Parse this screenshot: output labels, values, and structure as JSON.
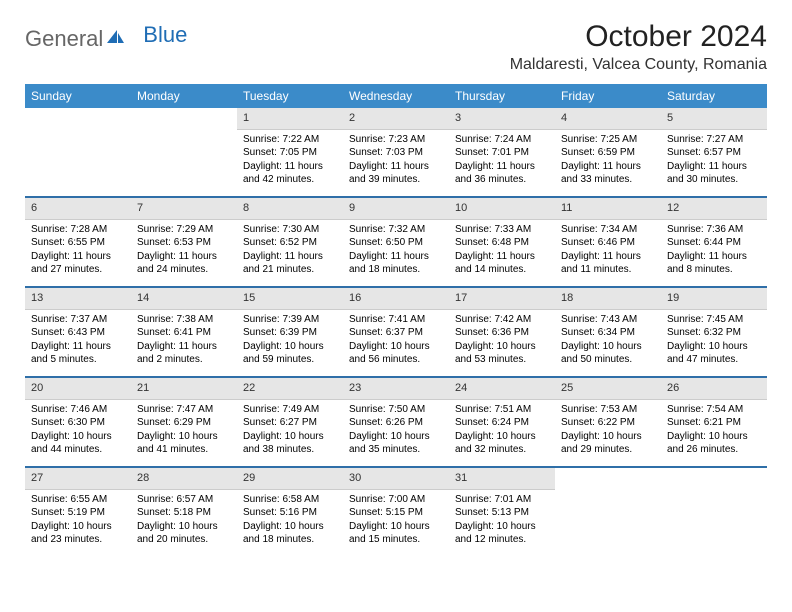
{
  "logo": {
    "general": "General",
    "blue": "Blue"
  },
  "title": "October 2024",
  "location": "Maldaresti, Valcea County, Romania",
  "colors": {
    "header_bg": "#3b8bc9",
    "header_text": "#ffffff",
    "daynum_bg": "#e6e6e6",
    "row_separator": "#2f6fa8",
    "logo_blue": "#1f6db5"
  },
  "weekdays": [
    "Sunday",
    "Monday",
    "Tuesday",
    "Wednesday",
    "Thursday",
    "Friday",
    "Saturday"
  ],
  "calendar": {
    "first_weekday_index": 2,
    "days": [
      {
        "n": 1,
        "sunrise": "7:22 AM",
        "sunset": "7:05 PM",
        "daylight": "11 hours and 42 minutes."
      },
      {
        "n": 2,
        "sunrise": "7:23 AM",
        "sunset": "7:03 PM",
        "daylight": "11 hours and 39 minutes."
      },
      {
        "n": 3,
        "sunrise": "7:24 AM",
        "sunset": "7:01 PM",
        "daylight": "11 hours and 36 minutes."
      },
      {
        "n": 4,
        "sunrise": "7:25 AM",
        "sunset": "6:59 PM",
        "daylight": "11 hours and 33 minutes."
      },
      {
        "n": 5,
        "sunrise": "7:27 AM",
        "sunset": "6:57 PM",
        "daylight": "11 hours and 30 minutes."
      },
      {
        "n": 6,
        "sunrise": "7:28 AM",
        "sunset": "6:55 PM",
        "daylight": "11 hours and 27 minutes."
      },
      {
        "n": 7,
        "sunrise": "7:29 AM",
        "sunset": "6:53 PM",
        "daylight": "11 hours and 24 minutes."
      },
      {
        "n": 8,
        "sunrise": "7:30 AM",
        "sunset": "6:52 PM",
        "daylight": "11 hours and 21 minutes."
      },
      {
        "n": 9,
        "sunrise": "7:32 AM",
        "sunset": "6:50 PM",
        "daylight": "11 hours and 18 minutes."
      },
      {
        "n": 10,
        "sunrise": "7:33 AM",
        "sunset": "6:48 PM",
        "daylight": "11 hours and 14 minutes."
      },
      {
        "n": 11,
        "sunrise": "7:34 AM",
        "sunset": "6:46 PM",
        "daylight": "11 hours and 11 minutes."
      },
      {
        "n": 12,
        "sunrise": "7:36 AM",
        "sunset": "6:44 PM",
        "daylight": "11 hours and 8 minutes."
      },
      {
        "n": 13,
        "sunrise": "7:37 AM",
        "sunset": "6:43 PM",
        "daylight": "11 hours and 5 minutes."
      },
      {
        "n": 14,
        "sunrise": "7:38 AM",
        "sunset": "6:41 PM",
        "daylight": "11 hours and 2 minutes."
      },
      {
        "n": 15,
        "sunrise": "7:39 AM",
        "sunset": "6:39 PM",
        "daylight": "10 hours and 59 minutes."
      },
      {
        "n": 16,
        "sunrise": "7:41 AM",
        "sunset": "6:37 PM",
        "daylight": "10 hours and 56 minutes."
      },
      {
        "n": 17,
        "sunrise": "7:42 AM",
        "sunset": "6:36 PM",
        "daylight": "10 hours and 53 minutes."
      },
      {
        "n": 18,
        "sunrise": "7:43 AM",
        "sunset": "6:34 PM",
        "daylight": "10 hours and 50 minutes."
      },
      {
        "n": 19,
        "sunrise": "7:45 AM",
        "sunset": "6:32 PM",
        "daylight": "10 hours and 47 minutes."
      },
      {
        "n": 20,
        "sunrise": "7:46 AM",
        "sunset": "6:30 PM",
        "daylight": "10 hours and 44 minutes."
      },
      {
        "n": 21,
        "sunrise": "7:47 AM",
        "sunset": "6:29 PM",
        "daylight": "10 hours and 41 minutes."
      },
      {
        "n": 22,
        "sunrise": "7:49 AM",
        "sunset": "6:27 PM",
        "daylight": "10 hours and 38 minutes."
      },
      {
        "n": 23,
        "sunrise": "7:50 AM",
        "sunset": "6:26 PM",
        "daylight": "10 hours and 35 minutes."
      },
      {
        "n": 24,
        "sunrise": "7:51 AM",
        "sunset": "6:24 PM",
        "daylight": "10 hours and 32 minutes."
      },
      {
        "n": 25,
        "sunrise": "7:53 AM",
        "sunset": "6:22 PM",
        "daylight": "10 hours and 29 minutes."
      },
      {
        "n": 26,
        "sunrise": "7:54 AM",
        "sunset": "6:21 PM",
        "daylight": "10 hours and 26 minutes."
      },
      {
        "n": 27,
        "sunrise": "6:55 AM",
        "sunset": "5:19 PM",
        "daylight": "10 hours and 23 minutes."
      },
      {
        "n": 28,
        "sunrise": "6:57 AM",
        "sunset": "5:18 PM",
        "daylight": "10 hours and 20 minutes."
      },
      {
        "n": 29,
        "sunrise": "6:58 AM",
        "sunset": "5:16 PM",
        "daylight": "10 hours and 18 minutes."
      },
      {
        "n": 30,
        "sunrise": "7:00 AM",
        "sunset": "5:15 PM",
        "daylight": "10 hours and 15 minutes."
      },
      {
        "n": 31,
        "sunrise": "7:01 AM",
        "sunset": "5:13 PM",
        "daylight": "10 hours and 12 minutes."
      }
    ]
  },
  "labels": {
    "sunrise_prefix": "Sunrise: ",
    "sunset_prefix": "Sunset: ",
    "daylight_prefix": "Daylight: "
  }
}
